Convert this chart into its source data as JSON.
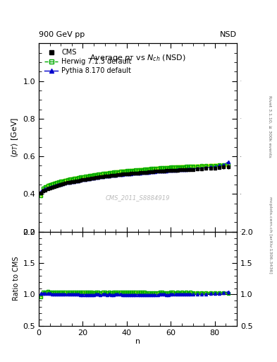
{
  "title": "Average $p_T$ vs $N_{ch}$ (NSD)",
  "top_left_label": "900 GeV pp",
  "top_right_label": "NSD",
  "right_label_top": "Rivet 3.1.10, ≥ 300k events",
  "right_label_bottom": "mcplots.cern.ch [arXiv:1306.3436]",
  "watermark": "CMS_2011_S8884919",
  "ylabel_main": "$\\langle p_T \\rangle$ [GeV]",
  "ylabel_ratio": "Ratio to CMS",
  "xlabel": "n",
  "ylim_main": [
    0.2,
    1.2
  ],
  "ylim_ratio": [
    0.5,
    2.0
  ],
  "yticks_main": [
    0.2,
    0.4,
    0.6,
    0.8,
    1.0
  ],
  "yticks_ratio": [
    0.5,
    1.0,
    1.5,
    2.0
  ],
  "xlim": [
    0,
    90
  ],
  "xticks": [
    0,
    20,
    40,
    60,
    80
  ],
  "cms_color": "#000000",
  "herwig_color": "#00aa00",
  "pythia_color": "#0000cc",
  "band_color": "#ccff00",
  "cms_n": [
    1,
    2,
    3,
    4,
    5,
    6,
    7,
    8,
    9,
    10,
    11,
    12,
    13,
    14,
    15,
    16,
    17,
    18,
    19,
    20,
    21,
    22,
    23,
    24,
    25,
    26,
    27,
    28,
    29,
    30,
    31,
    32,
    33,
    34,
    35,
    36,
    37,
    38,
    39,
    40,
    41,
    42,
    43,
    44,
    45,
    46,
    47,
    48,
    49,
    50,
    51,
    52,
    53,
    54,
    55,
    56,
    57,
    58,
    59,
    60,
    61,
    62,
    63,
    64,
    65,
    66,
    67,
    68,
    69,
    70,
    72,
    74,
    76,
    78,
    80,
    82,
    84,
    86
  ],
  "cms_pt": [
    0.405,
    0.415,
    0.422,
    0.427,
    0.432,
    0.436,
    0.44,
    0.444,
    0.447,
    0.451,
    0.454,
    0.457,
    0.46,
    0.462,
    0.465,
    0.467,
    0.469,
    0.471,
    0.474,
    0.476,
    0.478,
    0.48,
    0.482,
    0.484,
    0.486,
    0.487,
    0.489,
    0.491,
    0.492,
    0.494,
    0.496,
    0.497,
    0.499,
    0.5,
    0.501,
    0.502,
    0.503,
    0.505,
    0.506,
    0.507,
    0.508,
    0.509,
    0.51,
    0.511,
    0.512,
    0.513,
    0.514,
    0.515,
    0.516,
    0.517,
    0.518,
    0.519,
    0.52,
    0.521,
    0.521,
    0.522,
    0.523,
    0.524,
    0.525,
    0.525,
    0.526,
    0.527,
    0.527,
    0.528,
    0.528,
    0.529,
    0.529,
    0.53,
    0.53,
    0.531,
    0.532,
    0.533,
    0.535,
    0.536,
    0.538,
    0.54,
    0.543,
    0.546
  ],
  "cms_err": [
    0.005,
    0.004,
    0.004,
    0.004,
    0.004,
    0.004,
    0.004,
    0.004,
    0.004,
    0.004,
    0.004,
    0.004,
    0.004,
    0.004,
    0.004,
    0.004,
    0.004,
    0.004,
    0.004,
    0.004,
    0.004,
    0.004,
    0.004,
    0.004,
    0.004,
    0.004,
    0.004,
    0.004,
    0.004,
    0.004,
    0.004,
    0.004,
    0.004,
    0.004,
    0.004,
    0.004,
    0.004,
    0.004,
    0.004,
    0.004,
    0.004,
    0.004,
    0.004,
    0.004,
    0.004,
    0.004,
    0.004,
    0.004,
    0.004,
    0.004,
    0.004,
    0.004,
    0.004,
    0.004,
    0.004,
    0.004,
    0.004,
    0.004,
    0.004,
    0.004,
    0.004,
    0.004,
    0.004,
    0.004,
    0.004,
    0.004,
    0.004,
    0.004,
    0.004,
    0.004,
    0.005,
    0.005,
    0.005,
    0.006,
    0.007,
    0.008,
    0.01,
    0.012
  ],
  "herwig_n": [
    1,
    2,
    3,
    4,
    5,
    6,
    7,
    8,
    9,
    10,
    11,
    12,
    13,
    14,
    15,
    16,
    17,
    18,
    19,
    20,
    21,
    22,
    23,
    24,
    25,
    26,
    27,
    28,
    29,
    30,
    31,
    32,
    33,
    34,
    35,
    36,
    37,
    38,
    39,
    40,
    41,
    42,
    43,
    44,
    45,
    46,
    47,
    48,
    49,
    50,
    51,
    52,
    53,
    54,
    55,
    56,
    57,
    58,
    59,
    60,
    61,
    62,
    63,
    64,
    65,
    66,
    67,
    68,
    69,
    70,
    72,
    74,
    76,
    78,
    80,
    82,
    84,
    86
  ],
  "herwig_pt": [
    0.39,
    0.43,
    0.44,
    0.447,
    0.451,
    0.455,
    0.459,
    0.462,
    0.465,
    0.468,
    0.471,
    0.474,
    0.477,
    0.479,
    0.482,
    0.484,
    0.486,
    0.488,
    0.49,
    0.492,
    0.494,
    0.496,
    0.498,
    0.5,
    0.502,
    0.504,
    0.506,
    0.507,
    0.509,
    0.511,
    0.512,
    0.514,
    0.515,
    0.517,
    0.518,
    0.519,
    0.521,
    0.522,
    0.523,
    0.524,
    0.525,
    0.526,
    0.527,
    0.528,
    0.529,
    0.53,
    0.531,
    0.532,
    0.533,
    0.534,
    0.535,
    0.536,
    0.537,
    0.538,
    0.539,
    0.54,
    0.54,
    0.541,
    0.542,
    0.543,
    0.544,
    0.544,
    0.545,
    0.545,
    0.546,
    0.546,
    0.547,
    0.547,
    0.548,
    0.548,
    0.549,
    0.55,
    0.551,
    0.552,
    0.553,
    0.554,
    0.555,
    0.556
  ],
  "pythia_n": [
    1,
    2,
    3,
    4,
    5,
    6,
    7,
    8,
    9,
    10,
    11,
    12,
    13,
    14,
    15,
    16,
    17,
    18,
    19,
    20,
    21,
    22,
    23,
    24,
    25,
    26,
    27,
    28,
    29,
    30,
    31,
    32,
    33,
    34,
    35,
    36,
    37,
    38,
    39,
    40,
    41,
    42,
    43,
    44,
    45,
    46,
    47,
    48,
    49,
    50,
    51,
    52,
    53,
    54,
    55,
    56,
    57,
    58,
    59,
    60,
    61,
    62,
    63,
    64,
    65,
    66,
    67,
    68,
    69,
    70,
    72,
    74,
    76,
    78,
    80,
    82,
    84,
    86
  ],
  "pythia_pt": [
    0.412,
    0.422,
    0.428,
    0.433,
    0.437,
    0.44,
    0.443,
    0.446,
    0.449,
    0.452,
    0.455,
    0.458,
    0.46,
    0.463,
    0.465,
    0.467,
    0.469,
    0.471,
    0.473,
    0.475,
    0.477,
    0.479,
    0.481,
    0.483,
    0.485,
    0.487,
    0.489,
    0.49,
    0.492,
    0.494,
    0.495,
    0.497,
    0.498,
    0.499,
    0.501,
    0.502,
    0.503,
    0.504,
    0.505,
    0.506,
    0.507,
    0.508,
    0.509,
    0.51,
    0.511,
    0.512,
    0.513,
    0.514,
    0.515,
    0.516,
    0.517,
    0.518,
    0.519,
    0.52,
    0.521,
    0.522,
    0.523,
    0.523,
    0.524,
    0.525,
    0.526,
    0.527,
    0.528,
    0.528,
    0.529,
    0.53,
    0.531,
    0.532,
    0.533,
    0.534,
    0.536,
    0.538,
    0.54,
    0.543,
    0.546,
    0.55,
    0.555,
    0.57
  ]
}
